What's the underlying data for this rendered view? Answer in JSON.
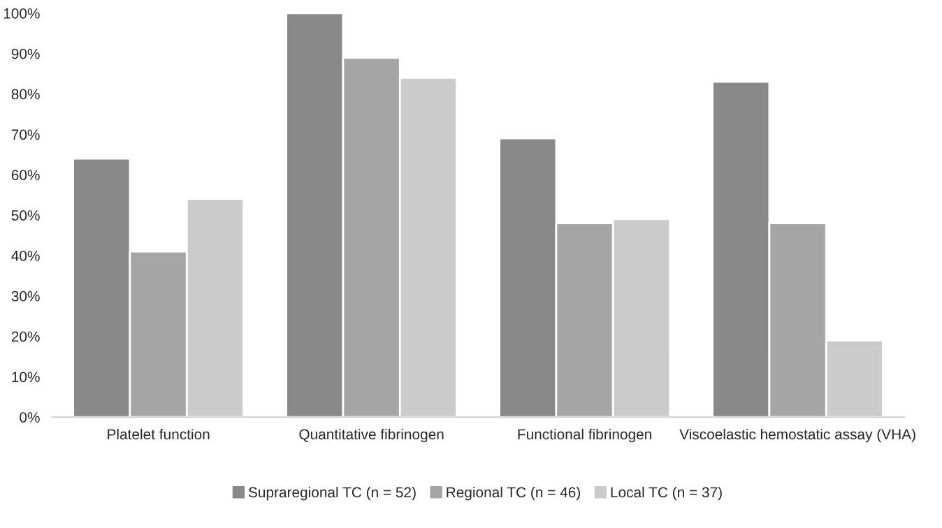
{
  "chart_data": {
    "type": "bar",
    "categories": [
      "Platelet function",
      "Quantitative fibrinogen",
      "Functional fibrinogen",
      "Viscoelastic hemostatic assay (VHA)"
    ],
    "series": [
      {
        "name": "Supraregional TC (n = 52)",
        "color": "#898989",
        "values": [
          64,
          100,
          69,
          83
        ]
      },
      {
        "name": "Regional TC (n = 46)",
        "color": "#a5a5a5",
        "values": [
          41,
          89,
          48,
          48
        ]
      },
      {
        "name": "Local TC (n = 37)",
        "color": "#cbcbcb",
        "values": [
          54,
          84,
          49,
          19
        ]
      }
    ],
    "ylim": [
      0,
      100
    ],
    "yticks": [
      {
        "value": 0,
        "label": "0%"
      },
      {
        "value": 10,
        "label": "10%"
      },
      {
        "value": 20,
        "label": "20%"
      },
      {
        "value": 30,
        "label": "30%"
      },
      {
        "value": 40,
        "label": "40%"
      },
      {
        "value": 50,
        "label": "50%"
      },
      {
        "value": 60,
        "label": "60%"
      },
      {
        "value": 70,
        "label": "70%"
      },
      {
        "value": 80,
        "label": "80%"
      },
      {
        "value": 90,
        "label": "90%"
      },
      {
        "value": 100,
        "label": "100%"
      }
    ],
    "grid": false,
    "legend": "bottom"
  }
}
